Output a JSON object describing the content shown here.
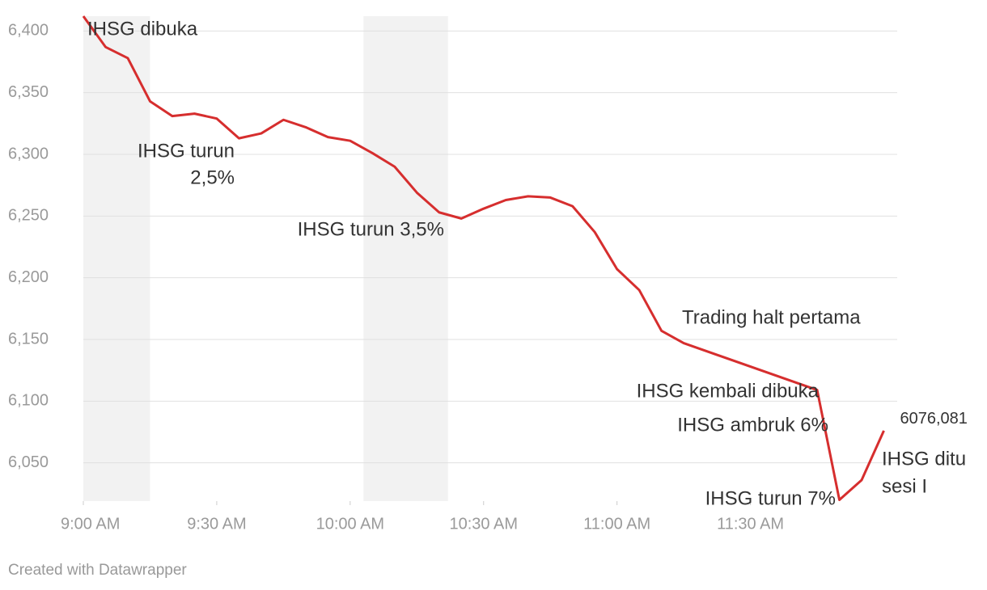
{
  "chart_data": {
    "type": "line",
    "x": [
      "9:00",
      "9:05",
      "9:10",
      "9:15",
      "9:20",
      "9:25",
      "9:30",
      "9:35",
      "9:40",
      "9:45",
      "9:50",
      "9:55",
      "10:00",
      "10:05",
      "10:10",
      "10:15",
      "10:20",
      "10:25",
      "10:30",
      "10:35",
      "10:40",
      "10:45",
      "10:50",
      "10:55",
      "11:00",
      "11:05",
      "11:10",
      "11:15",
      "11:45",
      "11:50",
      "11:55",
      "12:00"
    ],
    "series": [
      {
        "name": "IHSG",
        "color": "#d62e2e",
        "values": [
          6412,
          6387,
          6378,
          6343,
          6331,
          6333,
          6329,
          6313,
          6317,
          6328,
          6322,
          6314,
          6311,
          6301,
          6290,
          6269,
          6253,
          6248,
          6256,
          6263,
          6266,
          6265,
          6258,
          6237,
          6207,
          6190,
          6157,
          6147,
          6109,
          6020,
          6036,
          6076.081
        ],
        "value_labels": [
          null,
          null,
          null,
          null,
          null,
          null,
          null,
          null,
          null,
          null,
          null,
          null,
          null,
          null,
          null,
          null,
          null,
          null,
          null,
          null,
          null,
          null,
          null,
          null,
          null,
          null,
          null,
          null,
          null,
          null,
          null,
          "6076,081"
        ]
      }
    ],
    "xlim": [
      "9:00",
      "12:03"
    ],
    "xticks": [
      {
        "value": "9:00",
        "label": "9:00 AM"
      },
      {
        "value": "9:30",
        "label": "9:30 AM"
      },
      {
        "value": "10:00",
        "label": "10:00 AM"
      },
      {
        "value": "10:30",
        "label": "10:30 AM"
      },
      {
        "value": "11:00",
        "label": "11:00 AM"
      },
      {
        "value": "11:30",
        "label": "11:30 AM"
      }
    ],
    "ylim": [
      6019,
      6412
    ],
    "yticks": [
      {
        "value": 6050,
        "label": "6,050"
      },
      {
        "value": 6100,
        "label": "6,100"
      },
      {
        "value": 6150,
        "label": "6,150"
      },
      {
        "value": 6200,
        "label": "6,200"
      },
      {
        "value": 6250,
        "label": "6,250"
      },
      {
        "value": 6300,
        "label": "6,300"
      },
      {
        "value": 6350,
        "label": "6,350"
      },
      {
        "value": 6400,
        "label": "6,400"
      }
    ],
    "grid": true,
    "highlights": [
      [
        "9:00",
        "9:15"
      ],
      [
        "10:03",
        "10:22"
      ]
    ],
    "annotations": [
      [
        "IHSG dibuka"
      ],
      [
        "IHSG turun",
        "2,5%"
      ],
      [
        "IHSG turun 3,5%"
      ],
      [
        "Trading halt pertama"
      ],
      [
        "IHSG kembali dibuka"
      ],
      [
        "IHSG ambruk 6%"
      ],
      [
        "IHSG turun 7%"
      ],
      [
        "IHSG ditu",
        "sesi I"
      ]
    ],
    "credit": "Created with Datawrapper"
  }
}
